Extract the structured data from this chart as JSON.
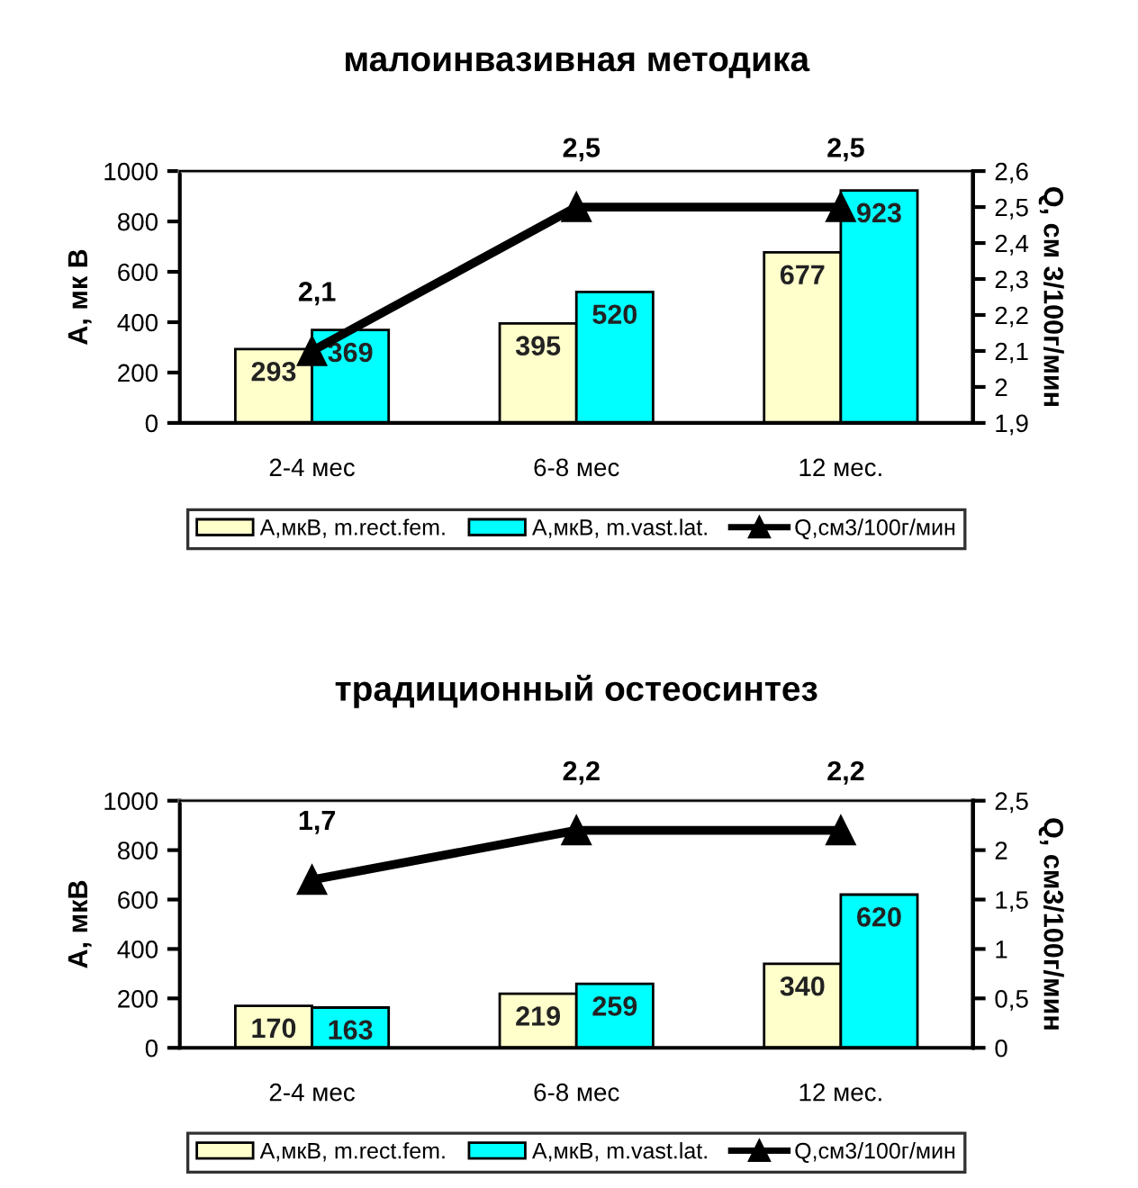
{
  "chart_data": [
    {
      "type": "bar",
      "title": "малоинвазивная методика",
      "ylabel": "A, мк В",
      "y2label": "Q, см 3/100г/мин",
      "categories": [
        "2-4 мес",
        "6-8 мес",
        "12 мес."
      ],
      "series": [
        {
          "name": "A,мкВ, m.rect.fem.",
          "color": "#ffffcc",
          "values": [
            293,
            395,
            677
          ]
        },
        {
          "name": "A,мкВ, m.vast.lat.",
          "color": "#00ffff",
          "values": [
            369,
            520,
            923
          ]
        },
        {
          "name": "Q,см3/100г/мин",
          "type": "line",
          "axis": "y2",
          "color": "#000000",
          "marker": "triangle",
          "values": [
            2.1,
            2.5,
            2.5
          ],
          "value_labels": [
            "2,1",
            "2,5",
            "2,5"
          ]
        }
      ],
      "ylim": [
        0,
        1000
      ],
      "yticks": [
        0,
        200,
        400,
        600,
        800,
        1000
      ],
      "y2lim": [
        1.9,
        2.6
      ],
      "y2ticks": [
        {
          "value": 1.9,
          "label": "1,9"
        },
        {
          "value": 2.0,
          "label": "2"
        },
        {
          "value": 2.1,
          "label": "2,1"
        },
        {
          "value": 2.2,
          "label": "2,2"
        },
        {
          "value": 2.3,
          "label": "2,3"
        },
        {
          "value": 2.4,
          "label": "2,4"
        },
        {
          "value": 2.5,
          "label": "2,5"
        },
        {
          "value": 2.6,
          "label": "2,6"
        }
      ],
      "data_labels": true,
      "legend": "bottom",
      "grid": false
    },
    {
      "type": "bar",
      "title": "традиционный остеосинтез",
      "ylabel": "A, мкВ",
      "y2label": "Q, см3/100г/мин",
      "categories": [
        "2-4 мес",
        "6-8 мес",
        "12 мес."
      ],
      "series": [
        {
          "name": "A,мкВ, m.rect.fem.",
          "color": "#ffffcc",
          "values": [
            170,
            219,
            340
          ]
        },
        {
          "name": "A,мкВ, m.vast.lat.",
          "color": "#00ffff",
          "values": [
            163,
            259,
            620
          ]
        },
        {
          "name": "Q,см3/100г/мин",
          "type": "line",
          "axis": "y2",
          "color": "#000000",
          "marker": "triangle",
          "values": [
            1.7,
            2.2,
            2.2
          ],
          "value_labels": [
            "1,7",
            "2,2",
            "2,2"
          ]
        }
      ],
      "ylim": [
        0,
        1000
      ],
      "yticks": [
        0,
        200,
        400,
        600,
        800,
        1000
      ],
      "y2lim": [
        0,
        2.5
      ],
      "y2ticks": [
        0,
        {
          "value": 0.5,
          "label": "0,5"
        },
        1,
        {
          "value": 1.5,
          "label": "1,5"
        },
        2,
        {
          "value": 2.5,
          "label": "2,5"
        }
      ],
      "data_labels": true,
      "legend": "bottom",
      "grid": false
    }
  ]
}
